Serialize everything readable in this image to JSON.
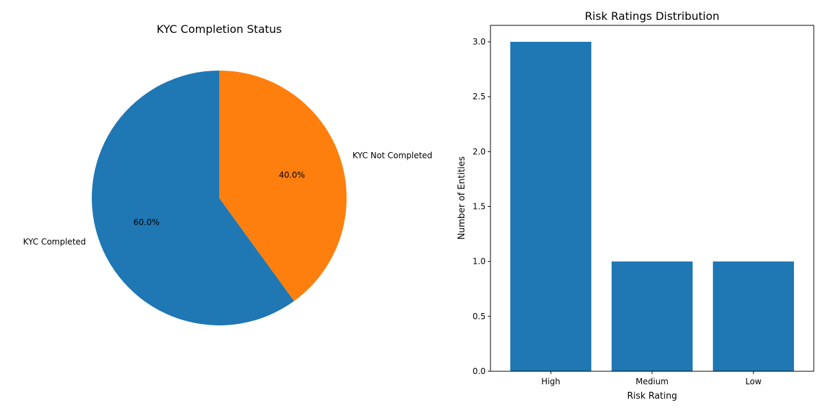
{
  "chart_data": [
    {
      "type": "pie",
      "title": "KYC Completion Status",
      "labels": [
        "KYC Completed",
        "KYC Not Completed"
      ],
      "values": [
        60,
        40
      ],
      "autopct": [
        "60.0%",
        "40.0%"
      ],
      "colors": [
        "#1f77b4",
        "#ff7f0e"
      ],
      "start_angle_deg": 90,
      "direction": "counterclockwise"
    },
    {
      "type": "bar",
      "title": "Risk Ratings Distribution",
      "categories": [
        "High",
        "Medium",
        "Low"
      ],
      "values": [
        3,
        1,
        1
      ],
      "xlabel": "Risk Rating",
      "ylabel": "Number of Entities",
      "ylim": [
        0,
        3.15
      ],
      "yticks": [
        "0.0",
        "0.5",
        "1.0",
        "1.5",
        "2.0",
        "2.5",
        "3.0"
      ],
      "color": "#1f77b4",
      "grid": false
    }
  ]
}
